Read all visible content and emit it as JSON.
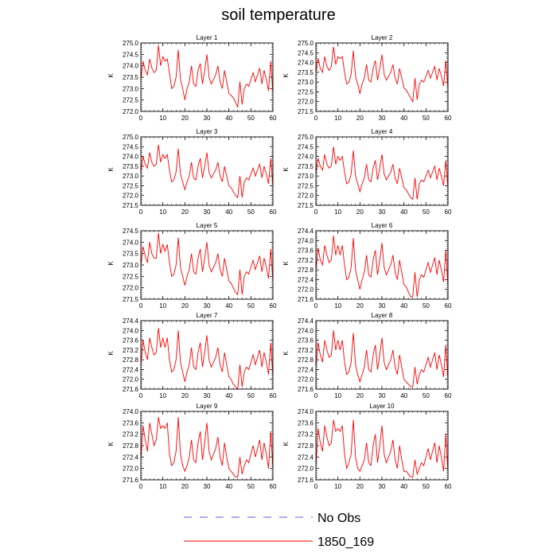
{
  "title": "soil temperature",
  "colors": {
    "model": "#ff0000",
    "obs": "#6a5acd",
    "axis": "#000000"
  },
  "legend": {
    "placement": "bottom-center",
    "entries": [
      {
        "label": "No Obs",
        "style": "dashed",
        "color": "#6a5acd"
      },
      {
        "label": "1850_169",
        "style": "solid",
        "color": "#ff0000"
      }
    ]
  },
  "chart_data": [
    {
      "type": "line",
      "title": "Layer 1",
      "ylabel": "K",
      "xlim": [
        0,
        60
      ],
      "ylim": [
        272.0,
        275.0
      ],
      "xticks": [
        "0",
        "10",
        "20",
        "30",
        "40",
        "50",
        "60"
      ],
      "yticks": [
        "272.0",
        "272.5",
        "273.0",
        "273.5",
        "274.0",
        "274.5",
        "275.0"
      ],
      "series": [
        {
          "name": "1850_169",
          "values": [
            273.4,
            274.2,
            273.8,
            273.6,
            274.3,
            273.9,
            273.7,
            273.8,
            274.9,
            274.0,
            274.4,
            274.2,
            274.3,
            273.7,
            273.0,
            273.1,
            273.5,
            274.7,
            273.4,
            273.0,
            272.5,
            273.0,
            273.3,
            274.0,
            273.2,
            273.1,
            273.8,
            274.1,
            273.2,
            273.8,
            274.5,
            273.5,
            273.2,
            273.4,
            273.6,
            274.0,
            273.3,
            273.0,
            273.8,
            273.3,
            272.8,
            272.7,
            272.6,
            272.4,
            272.2,
            273.3,
            272.3,
            273.0,
            273.2,
            273.1,
            273.4,
            273.7,
            273.3,
            273.6,
            273.9,
            273.2,
            273.8,
            273.4,
            272.9,
            274.2,
            272.8
          ]
        }
      ]
    },
    {
      "type": "line",
      "title": "Layer 2",
      "ylabel": "K",
      "xlim": [
        0,
        60
      ],
      "ylim": [
        271.5,
        275.0
      ],
      "xticks": [
        "0",
        "10",
        "20",
        "30",
        "40",
        "50",
        "60"
      ],
      "yticks": [
        "271.5",
        "272.0",
        "272.5",
        "273.0",
        "273.5",
        "274.0",
        "274.5",
        "275.0"
      ],
      "series": [
        {
          "name": "1850_169",
          "values": [
            273.5,
            274.2,
            273.7,
            273.5,
            274.3,
            273.8,
            273.6,
            273.8,
            274.8,
            273.9,
            274.3,
            274.2,
            274.3,
            273.5,
            272.9,
            273.0,
            273.4,
            274.6,
            273.3,
            272.9,
            272.4,
            272.9,
            273.2,
            273.9,
            273.1,
            273.0,
            273.7,
            274.1,
            273.1,
            273.7,
            274.4,
            273.4,
            273.1,
            273.3,
            273.5,
            273.9,
            273.2,
            272.9,
            273.7,
            273.2,
            272.7,
            272.6,
            272.4,
            272.2,
            272.0,
            273.2,
            272.1,
            272.9,
            273.1,
            273.0,
            273.3,
            273.6,
            273.2,
            273.5,
            273.8,
            273.1,
            273.7,
            273.3,
            272.8,
            274.1,
            272.7
          ]
        }
      ]
    },
    {
      "type": "line",
      "title": "Layer 3",
      "ylabel": "K",
      "xlim": [
        0,
        60
      ],
      "ylim": [
        271.5,
        275.0
      ],
      "xticks": [
        "0",
        "10",
        "20",
        "30",
        "40",
        "50",
        "60"
      ],
      "yticks": [
        "271.5",
        "272.0",
        "272.5",
        "273.0",
        "273.5",
        "274.0",
        "274.5",
        "275.0"
      ],
      "series": [
        {
          "name": "1850_169",
          "values": [
            273.2,
            274.0,
            273.6,
            273.4,
            274.2,
            273.7,
            273.5,
            273.6,
            274.6,
            273.7,
            274.1,
            273.9,
            274.1,
            273.3,
            272.7,
            272.8,
            273.2,
            274.4,
            273.1,
            272.7,
            272.3,
            272.7,
            273.0,
            273.7,
            272.9,
            272.8,
            273.5,
            273.9,
            272.9,
            273.5,
            274.2,
            273.2,
            272.9,
            273.1,
            273.3,
            273.7,
            273.0,
            272.7,
            273.5,
            273.0,
            272.5,
            272.4,
            272.2,
            272.0,
            271.9,
            273.0,
            271.9,
            272.7,
            272.9,
            272.8,
            273.1,
            273.4,
            273.0,
            273.3,
            273.6,
            272.9,
            273.5,
            273.1,
            272.6,
            273.9,
            272.5
          ]
        }
      ]
    },
    {
      "type": "line",
      "title": "Layer 4",
      "ylabel": "K",
      "xlim": [
        0,
        60
      ],
      "ylim": [
        271.5,
        275.0
      ],
      "xticks": [
        "0",
        "10",
        "20",
        "30",
        "40",
        "50",
        "60"
      ],
      "yticks": [
        "271.5",
        "272.0",
        "272.5",
        "273.0",
        "273.5",
        "274.0",
        "274.5",
        "275.0"
      ],
      "series": [
        {
          "name": "1850_169",
          "values": [
            273.1,
            273.9,
            273.5,
            273.3,
            274.1,
            273.6,
            273.4,
            273.5,
            274.5,
            273.6,
            274.0,
            273.8,
            274.0,
            273.2,
            272.6,
            272.7,
            273.1,
            274.3,
            273.0,
            272.6,
            272.2,
            272.6,
            272.9,
            273.6,
            272.8,
            272.7,
            273.4,
            273.8,
            272.8,
            273.4,
            274.1,
            273.1,
            272.8,
            273.0,
            273.2,
            273.6,
            272.9,
            272.6,
            273.4,
            272.9,
            272.4,
            272.3,
            272.1,
            271.9,
            271.8,
            272.9,
            271.8,
            272.6,
            272.8,
            272.7,
            273.0,
            273.3,
            272.9,
            273.2,
            273.5,
            272.8,
            273.4,
            273.0,
            272.5,
            273.8,
            272.4
          ]
        }
      ]
    },
    {
      "type": "line",
      "title": "Layer 5",
      "ylabel": "K",
      "xlim": [
        0,
        60
      ],
      "ylim": [
        271.5,
        274.5
      ],
      "xticks": [
        "0",
        "10",
        "20",
        "30",
        "40",
        "50",
        "60"
      ],
      "yticks": [
        "271.5",
        "272.0",
        "272.5",
        "273.0",
        "273.5",
        "274.0",
        "274.5"
      ],
      "series": [
        {
          "name": "1850_169",
          "values": [
            273.0,
            273.8,
            273.4,
            273.1,
            274.0,
            273.5,
            273.3,
            273.3,
            274.4,
            273.5,
            273.9,
            273.6,
            273.9,
            273.1,
            272.5,
            272.6,
            273.0,
            274.2,
            272.9,
            272.5,
            272.1,
            272.5,
            272.8,
            273.5,
            272.7,
            272.6,
            273.3,
            273.7,
            272.7,
            273.3,
            274.0,
            273.0,
            272.7,
            272.9,
            273.1,
            273.5,
            272.8,
            272.5,
            273.3,
            272.8,
            272.3,
            272.2,
            272.0,
            271.8,
            271.7,
            272.8,
            271.7,
            272.5,
            272.7,
            272.6,
            272.9,
            273.2,
            272.8,
            273.1,
            273.4,
            272.7,
            273.3,
            272.9,
            272.4,
            273.7,
            272.3
          ]
        }
      ]
    },
    {
      "type": "line",
      "title": "Layer 6",
      "ylabel": "K",
      "xlim": [
        0,
        60
      ],
      "ylim": [
        271.6,
        274.4
      ],
      "xticks": [
        "0",
        "10",
        "20",
        "30",
        "40",
        "50",
        "60"
      ],
      "yticks": [
        "271.6",
        "272.0",
        "272.4",
        "272.8",
        "273.2",
        "273.6",
        "274.0",
        "274.4"
      ],
      "series": [
        {
          "name": "1850_169",
          "values": [
            272.8,
            273.7,
            273.2,
            273.0,
            273.8,
            273.4,
            273.1,
            273.2,
            274.2,
            273.4,
            273.8,
            273.4,
            273.8,
            273.0,
            272.4,
            272.5,
            272.9,
            274.1,
            272.8,
            272.4,
            272.0,
            272.4,
            272.7,
            273.4,
            272.6,
            272.5,
            273.2,
            273.6,
            272.6,
            273.2,
            273.9,
            272.9,
            272.6,
            272.8,
            273.0,
            273.4,
            272.7,
            272.4,
            273.2,
            272.7,
            272.2,
            272.1,
            271.9,
            271.7,
            271.7,
            272.7,
            271.7,
            272.4,
            272.6,
            272.5,
            272.8,
            273.1,
            272.7,
            273.0,
            273.3,
            272.6,
            273.2,
            272.8,
            272.3,
            273.6,
            272.2
          ]
        }
      ]
    },
    {
      "type": "line",
      "title": "Layer 7",
      "ylabel": "K",
      "xlim": [
        0,
        60
      ],
      "ylim": [
        271.6,
        274.4
      ],
      "xticks": [
        "0",
        "10",
        "20",
        "30",
        "40",
        "50",
        "60"
      ],
      "yticks": [
        "271.6",
        "272.0",
        "272.4",
        "272.8",
        "273.2",
        "273.6",
        "274.0",
        "274.4"
      ],
      "series": [
        {
          "name": "1850_169",
          "values": [
            272.6,
            273.6,
            273.1,
            272.8,
            273.7,
            273.3,
            273.0,
            273.1,
            274.1,
            273.3,
            273.7,
            273.3,
            273.7,
            272.8,
            272.3,
            272.4,
            272.8,
            274.0,
            272.7,
            272.3,
            271.9,
            272.3,
            272.6,
            273.3,
            272.5,
            272.4,
            273.1,
            273.5,
            272.5,
            273.1,
            273.8,
            272.8,
            272.5,
            272.7,
            272.9,
            273.3,
            272.6,
            272.3,
            273.1,
            272.6,
            272.1,
            272.0,
            271.8,
            271.7,
            271.6,
            272.6,
            271.7,
            272.3,
            272.5,
            272.4,
            272.7,
            273.0,
            272.6,
            272.9,
            273.2,
            272.5,
            273.1,
            272.7,
            272.2,
            273.5,
            272.1
          ]
        }
      ]
    },
    {
      "type": "line",
      "title": "Layer 8",
      "ylabel": "K",
      "xlim": [
        0,
        60
      ],
      "ylim": [
        271.6,
        274.4
      ],
      "xticks": [
        "0",
        "10",
        "20",
        "30",
        "40",
        "50",
        "60"
      ],
      "yticks": [
        "271.6",
        "272.0",
        "272.4",
        "272.8",
        "273.2",
        "273.6",
        "274.0",
        "274.4"
      ],
      "series": [
        {
          "name": "1850_169",
          "values": [
            272.5,
            273.5,
            273.0,
            272.7,
            273.6,
            273.2,
            272.9,
            273.0,
            274.0,
            273.2,
            273.6,
            273.2,
            273.6,
            272.7,
            272.2,
            272.3,
            272.7,
            273.9,
            272.6,
            272.2,
            271.9,
            272.2,
            272.5,
            273.2,
            272.4,
            272.3,
            273.0,
            273.4,
            272.4,
            273.0,
            273.7,
            272.7,
            272.4,
            272.6,
            272.8,
            273.2,
            272.5,
            272.2,
            273.0,
            272.5,
            272.0,
            271.9,
            271.8,
            271.7,
            271.7,
            272.5,
            271.8,
            272.2,
            272.4,
            272.3,
            272.6,
            272.9,
            272.5,
            272.8,
            273.1,
            272.4,
            273.0,
            272.6,
            272.1,
            273.4,
            272.0
          ]
        }
      ]
    },
    {
      "type": "line",
      "title": "Layer 9",
      "ylabel": "K",
      "xlim": [
        0,
        60
      ],
      "ylim": [
        271.6,
        274.0
      ],
      "xticks": [
        "0",
        "10",
        "20",
        "30",
        "40",
        "50",
        "60"
      ],
      "yticks": [
        "271.6",
        "272.0",
        "272.4",
        "272.8",
        "273.2",
        "273.6",
        "274.0"
      ],
      "series": [
        {
          "name": "1850_169",
          "values": [
            272.3,
            273.5,
            273.0,
            272.6,
            273.6,
            273.2,
            272.8,
            273.0,
            273.8,
            273.4,
            273.5,
            273.4,
            273.6,
            272.5,
            272.1,
            272.2,
            272.6,
            273.8,
            272.5,
            272.1,
            271.9,
            272.1,
            272.4,
            273.0,
            272.3,
            272.2,
            272.9,
            273.3,
            272.3,
            272.9,
            273.6,
            272.6,
            272.3,
            272.5,
            272.7,
            273.1,
            272.4,
            272.1,
            272.9,
            272.4,
            272.0,
            271.9,
            271.8,
            271.7,
            271.7,
            272.4,
            271.8,
            272.1,
            272.3,
            272.2,
            272.5,
            272.8,
            272.4,
            272.7,
            273.0,
            272.3,
            272.9,
            272.5,
            272.0,
            273.3,
            272.0
          ]
        }
      ]
    },
    {
      "type": "line",
      "title": "Layer 10",
      "ylabel": "K",
      "xlim": [
        0,
        60
      ],
      "ylim": [
        271.6,
        274.0
      ],
      "xticks": [
        "0",
        "10",
        "20",
        "30",
        "40",
        "50",
        "60"
      ],
      "yticks": [
        "271.6",
        "272.0",
        "272.4",
        "272.8",
        "273.2",
        "273.6",
        "274.0"
      ],
      "series": [
        {
          "name": "1850_169",
          "values": [
            272.1,
            273.4,
            272.9,
            272.6,
            273.5,
            273.1,
            272.8,
            272.9,
            273.7,
            273.3,
            273.4,
            273.3,
            273.5,
            272.5,
            272.0,
            272.2,
            272.5,
            273.7,
            272.4,
            272.0,
            271.9,
            272.1,
            272.3,
            272.9,
            272.2,
            272.1,
            272.8,
            273.2,
            272.2,
            272.8,
            273.5,
            272.5,
            272.2,
            272.4,
            272.6,
            273.0,
            272.3,
            272.0,
            272.8,
            272.3,
            271.9,
            271.9,
            271.8,
            271.7,
            271.7,
            272.3,
            271.8,
            272.0,
            272.2,
            272.1,
            272.4,
            272.7,
            272.3,
            272.6,
            272.9,
            272.2,
            272.8,
            272.4,
            271.9,
            273.2,
            271.9
          ]
        }
      ]
    }
  ]
}
